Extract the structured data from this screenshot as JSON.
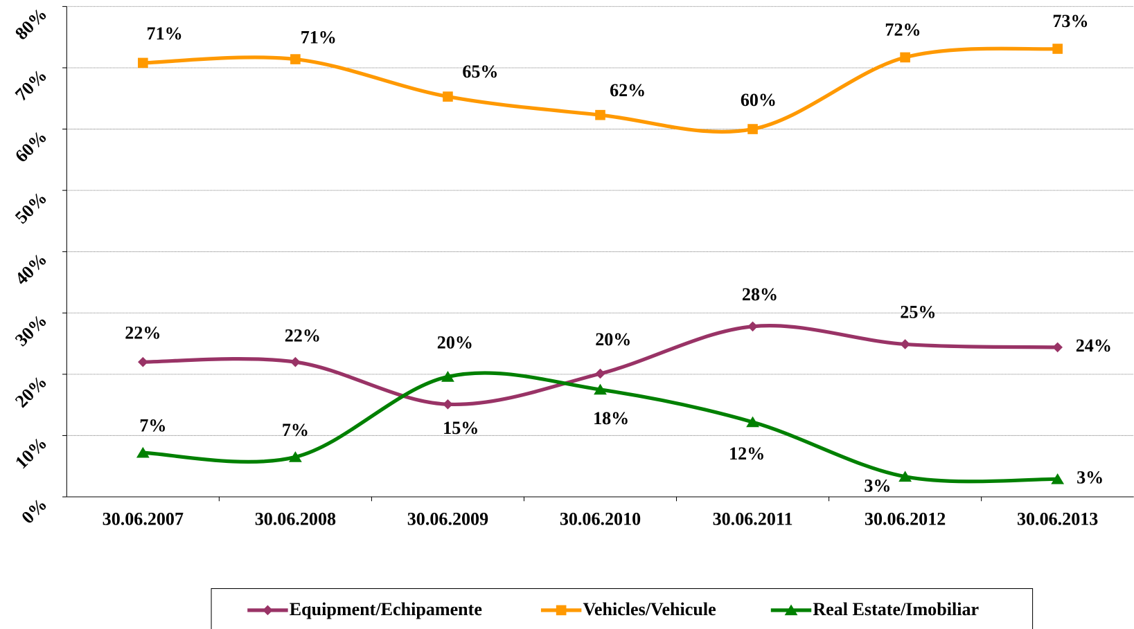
{
  "chart_data": {
    "type": "line",
    "categories": [
      "30.06.2007",
      "30.06.2008",
      "30.06.2009",
      "30.06.2010",
      "30.06.2011",
      "30.06.2012",
      "30.06.2013"
    ],
    "series": [
      {
        "name": "Equipment/Echipamente",
        "color": "#993366",
        "marker": "diamond",
        "values": [
          22.0,
          22.0,
          15.1,
          20.1,
          27.8,
          24.9,
          24.4
        ],
        "value_labels": [
          "22%",
          "22%",
          "15%",
          "20%",
          "28%",
          "25%",
          "24%"
        ]
      },
      {
        "name": "Vehicles/Vehicule",
        "color": "#ff9900",
        "marker": "square",
        "values": [
          70.8,
          71.4,
          65.3,
          62.3,
          60.0,
          71.7,
          73.1
        ],
        "value_labels": [
          "71%",
          "71%",
          "65%",
          "62%",
          "60%",
          "72%",
          "73%"
        ]
      },
      {
        "name": "Real Estate/Imobiliar",
        "color": "#008000",
        "marker": "triangle",
        "values": [
          7.2,
          6.5,
          19.6,
          17.5,
          12.2,
          3.3,
          2.9
        ],
        "value_labels": [
          "7%",
          "7%",
          "20%",
          "18%",
          "12%",
          "3%",
          "3%"
        ]
      }
    ],
    "ylim": [
      0,
      80
    ],
    "yticks": [
      {
        "value": 0,
        "label": "0%"
      },
      {
        "value": 10,
        "label": "10%"
      },
      {
        "value": 20,
        "label": "20%"
      },
      {
        "value": 30,
        "label": "30%"
      },
      {
        "value": 40,
        "label": "40%"
      },
      {
        "value": 50,
        "label": "50%"
      },
      {
        "value": 60,
        "label": "60%"
      },
      {
        "value": 70,
        "label": "70%"
      },
      {
        "value": 80,
        "label": "80%"
      }
    ],
    "grid": true,
    "legend": "bottom"
  }
}
